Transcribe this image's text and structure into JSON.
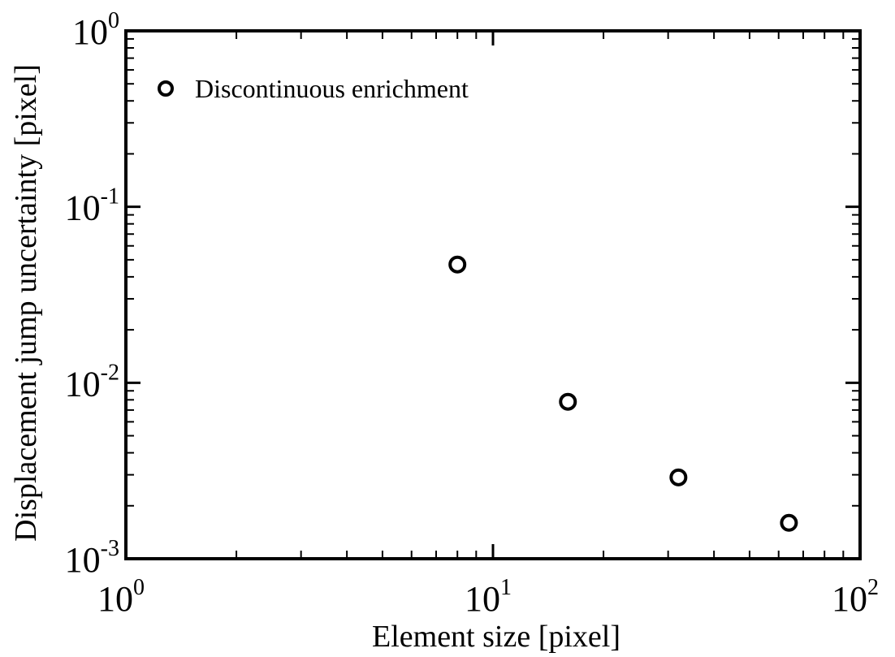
{
  "chart_data": {
    "type": "scatter",
    "xlabel": "Element size [pixel]",
    "ylabel": "Displacement jump uncertainty [pixel]",
    "x_scale": "log",
    "y_scale": "log",
    "xlim": [
      1,
      100
    ],
    "ylim": [
      0.001,
      1
    ],
    "x_ticks": [
      {
        "value": 1,
        "base": "10",
        "exp": "0"
      },
      {
        "value": 10,
        "base": "10",
        "exp": "1"
      },
      {
        "value": 100,
        "base": "10",
        "exp": "2"
      }
    ],
    "y_ticks": [
      {
        "value": 1,
        "base": "10",
        "exp": "0"
      },
      {
        "value": 0.1,
        "base": "10",
        "exp": "-1"
      },
      {
        "value": 0.01,
        "base": "10",
        "exp": "-2"
      },
      {
        "value": 0.001,
        "base": "10",
        "exp": "-3"
      }
    ],
    "grid": false,
    "legend_position": "top-left",
    "series": [
      {
        "name": "Discontinuous enrichment",
        "marker": "open-circle",
        "color": "#000000",
        "points": [
          {
            "x": 8,
            "y": 0.047
          },
          {
            "x": 16,
            "y": 0.0078
          },
          {
            "x": 32,
            "y": 0.0029
          },
          {
            "x": 64,
            "y": 0.0016
          }
        ]
      }
    ]
  }
}
